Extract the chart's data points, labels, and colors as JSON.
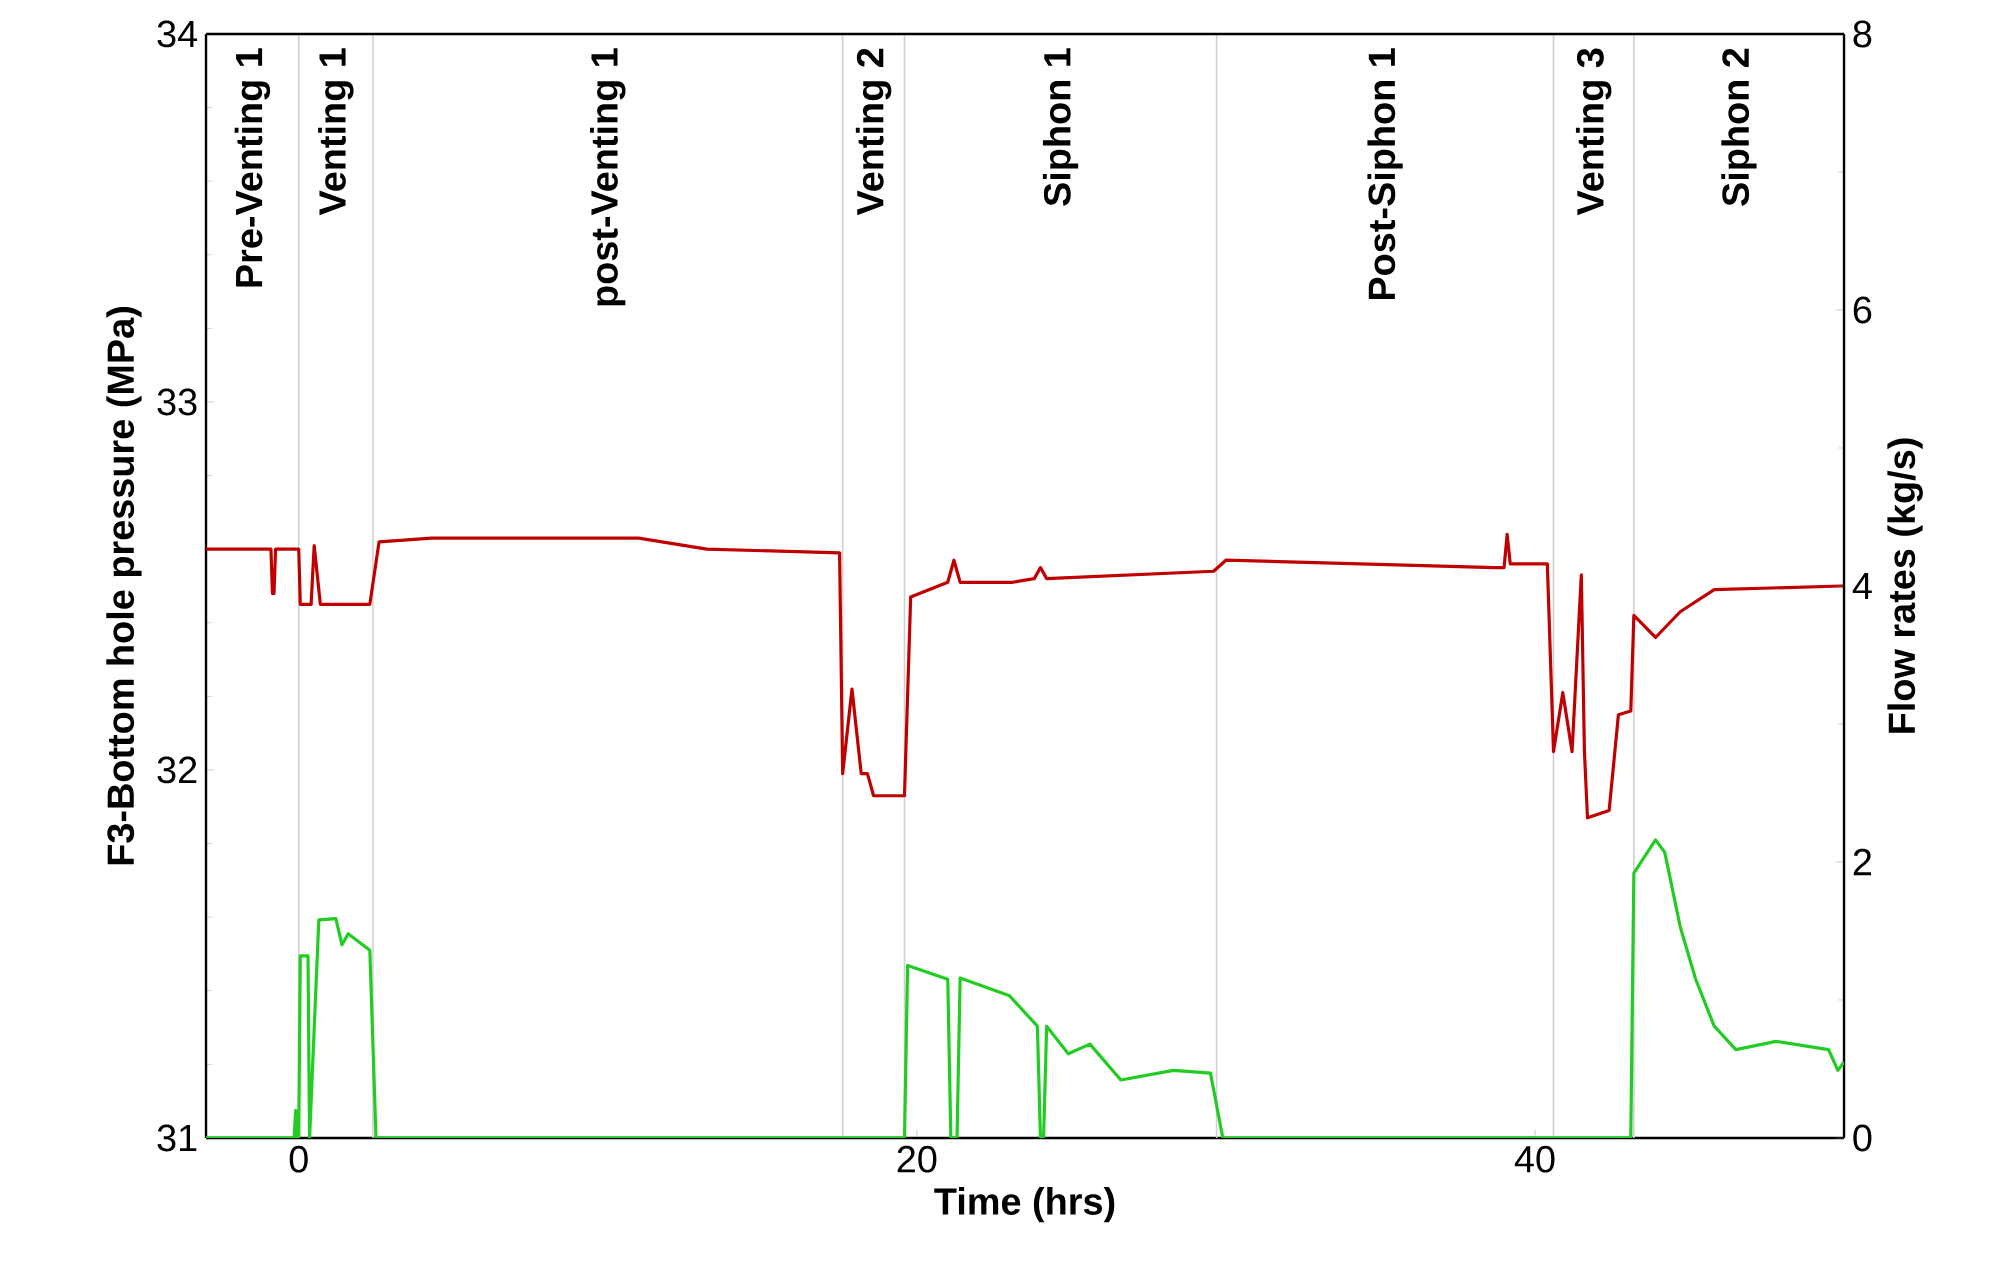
{
  "chart_data": {
    "type": "line",
    "xlabel": "Time (hrs)",
    "ylabel": "F3-Bottom hole pressure (MPa)",
    "y2label": "Flow rates (kg/s)",
    "xlim": [
      -3,
      50
    ],
    "xticks": [
      0,
      20,
      40
    ],
    "ylim": [
      31,
      34
    ],
    "yticks": [
      31,
      32,
      33,
      34
    ],
    "y2lim": [
      0,
      8
    ],
    "y2ticks": [
      0,
      2,
      4,
      6,
      8
    ],
    "ref_lines": [
      {
        "axis": "x",
        "value": 0,
        "color": "#d0d0d0"
      },
      {
        "axis": "x",
        "value": 2.4,
        "color": "#d0d0d0"
      },
      {
        "axis": "x",
        "value": 17.6,
        "color": "#d0d0d0"
      },
      {
        "axis": "x",
        "value": 19.6,
        "color": "#d0d0d0"
      },
      {
        "axis": "x",
        "value": 29.7,
        "color": "#d0d0d0"
      },
      {
        "axis": "x",
        "value": 40.6,
        "color": "#d0d0d0"
      },
      {
        "axis": "x",
        "value": 43.2,
        "color": "#d0d0d0"
      }
    ],
    "annotations": [
      "Pre-Venting 1",
      "Venting 1",
      "post-Venting 1",
      "Venting 2",
      "Siphon 1",
      "Post-Siphon 1",
      "Venting 3",
      "Siphon 2"
    ],
    "series": [
      {
        "color": "#c00000",
        "x": [
          -3,
          -0.9,
          -0.85,
          -0.8,
          -0.75,
          0,
          0.05,
          0.4,
          0.5,
          0.7,
          2.3,
          2.6,
          4.3,
          11.0,
          13.2,
          17.5,
          17.6,
          17.9,
          18.2,
          18.4,
          18.6,
          19.6,
          19.8,
          21.0,
          21.2,
          21.4,
          23.1,
          23.8,
          24.0,
          24.2,
          29.6,
          30.0,
          38.7,
          39.0,
          39.1,
          39.2,
          40.4,
          40.6,
          40.9,
          41.2,
          41.5,
          41.6,
          41.7,
          42.4,
          42.7,
          43.1,
          43.2,
          43.9,
          44.7,
          45.8,
          49.9,
          50
        ],
        "values": [
          32.6,
          32.6,
          32.48,
          32.48,
          32.6,
          32.6,
          32.45,
          32.45,
          32.61,
          32.45,
          32.45,
          32.62,
          32.63,
          32.63,
          32.6,
          32.59,
          31.99,
          32.22,
          31.99,
          31.99,
          31.93,
          31.93,
          32.47,
          32.51,
          32.57,
          32.51,
          32.51,
          32.52,
          32.55,
          32.52,
          32.54,
          32.57,
          32.55,
          32.55,
          32.64,
          32.56,
          32.56,
          32.05,
          32.21,
          32.05,
          32.53,
          32.05,
          31.87,
          31.89,
          32.15,
          32.16,
          32.42,
          32.36,
          32.43,
          32.49,
          32.5,
          32.5
        ]
      },
      {
        "color": "#22cc22",
        "axis": "y2",
        "x": [
          -3,
          -0.15,
          -0.1,
          -0.05,
          0,
          0.05,
          0.3,
          0.35,
          0.65,
          1.2,
          1.4,
          1.6,
          2.3,
          2.5,
          19.6,
          19.7,
          21.0,
          21.1,
          21.3,
          21.4,
          23.0,
          23.9,
          24.0,
          24.1,
          24.2,
          24.9,
          25.6,
          26.6,
          28.3,
          29.5,
          29.9,
          43.1,
          43.2,
          43.9,
          44.2,
          44.7,
          45.2,
          45.8,
          46.5,
          47.8,
          49.5,
          49.8,
          50
        ],
        "values": [
          0,
          0,
          0.2,
          0,
          0,
          1.32,
          1.32,
          0,
          1.58,
          1.59,
          1.4,
          1.48,
          1.36,
          0,
          0,
          1.25,
          1.15,
          0,
          0,
          1.16,
          1.03,
          0.81,
          0,
          0,
          0.81,
          0.61,
          0.68,
          0.42,
          0.49,
          0.47,
          0,
          0,
          1.92,
          2.16,
          2.07,
          1.53,
          1.15,
          0.81,
          0.64,
          0.7,
          0.64,
          0.49,
          0.55
        ]
      }
    ]
  }
}
